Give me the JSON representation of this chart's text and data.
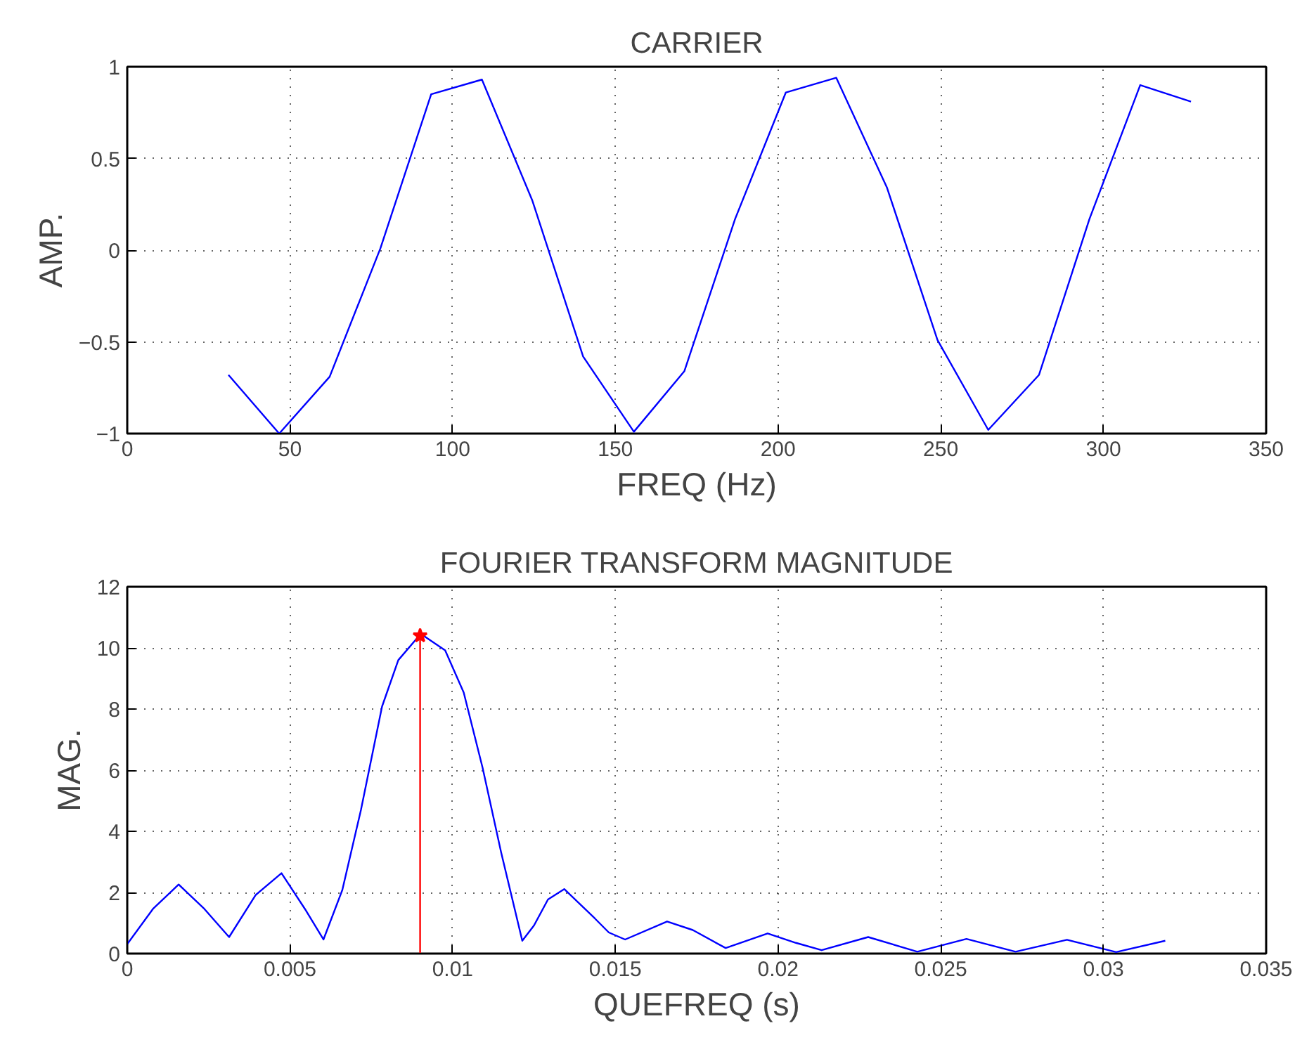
{
  "chart_data": [
    {
      "type": "line",
      "title": "CARRIER",
      "xlabel": "FREQ (Hz)",
      "ylabel": "AMP.",
      "xlim": [
        0,
        350
      ],
      "ylim": [
        -1,
        1
      ],
      "xticks": [
        0,
        50,
        100,
        150,
        200,
        250,
        300,
        350
      ],
      "yticks": [
        {
          "value": -1,
          "label": "−1"
        },
        {
          "value": -0.5,
          "label": "−0.5"
        },
        0,
        0.5,
        1
      ],
      "grid": true,
      "series": [
        {
          "color": "#0000ff",
          "x": [
            31.1,
            46.7,
            62.2,
            77.8,
            93.4,
            109.0,
            124.5,
            140.1,
            155.7,
            171.2,
            186.8,
            202.4,
            217.9,
            233.5,
            249.0,
            264.6,
            280.2,
            295.7,
            311.3,
            326.9
          ],
          "values": [
            -0.68,
            -1.0,
            -0.69,
            0.01,
            0.85,
            0.93,
            0.27,
            -0.58,
            -0.99,
            -0.66,
            0.17,
            0.86,
            0.94,
            0.34,
            -0.49,
            -0.98,
            -0.68,
            0.17,
            0.9,
            0.81
          ]
        }
      ]
    },
    {
      "type": "line",
      "title": "FOURIER TRANSFORM MAGNITUDE",
      "xlabel": "QUEFREQ (s)",
      "ylabel": "MAG.",
      "xlim": [
        0,
        0.035
      ],
      "ylim": [
        0,
        12
      ],
      "xticks": [
        0,
        0.005,
        0.01,
        0.015,
        0.02,
        0.025,
        0.03,
        0.035
      ],
      "yticks": [
        0,
        2,
        4,
        6,
        8,
        10,
        12
      ],
      "grid": true,
      "series": [
        {
          "color": "#0000ff",
          "x": [
            0,
            0.00079,
            0.00158,
            0.00237,
            0.00313,
            0.00395,
            0.00474,
            0.00546,
            0.00603,
            0.00661,
            0.00718,
            0.00783,
            0.00833,
            0.00902,
            0.00977,
            0.01034,
            0.01092,
            0.01149,
            0.01214,
            0.0125,
            0.01293,
            0.01343,
            0.01437,
            0.0148,
            0.0153,
            0.01659,
            0.01738,
            0.01839,
            0.01968,
            0.02055,
            0.02134,
            0.02277,
            0.02428,
            0.02579,
            0.0273,
            0.02888,
            0.03039,
            0.0319
          ],
          "values": [
            0.31,
            1.46,
            2.26,
            1.46,
            0.54,
            1.92,
            2.63,
            1.46,
            0.46,
            2.08,
            4.69,
            8.08,
            9.6,
            10.46,
            9.92,
            8.54,
            6.08,
            3.31,
            0.42,
            0.92,
            1.77,
            2.11,
            1.15,
            0.69,
            0.46,
            1.05,
            0.77,
            0.18,
            0.66,
            0.35,
            0.11,
            0.54,
            0.06,
            0.48,
            0.06,
            0.45,
            0.05,
            0.42
          ]
        },
        {
          "color": "#ff0000",
          "x": [
            0.009,
            0.009
          ],
          "values": [
            0,
            10.4
          ]
        },
        {
          "type": "scatter",
          "color": "#ff0000",
          "marker": "star",
          "x": [
            0.009
          ],
          "values": [
            10.4
          ]
        }
      ]
    }
  ]
}
